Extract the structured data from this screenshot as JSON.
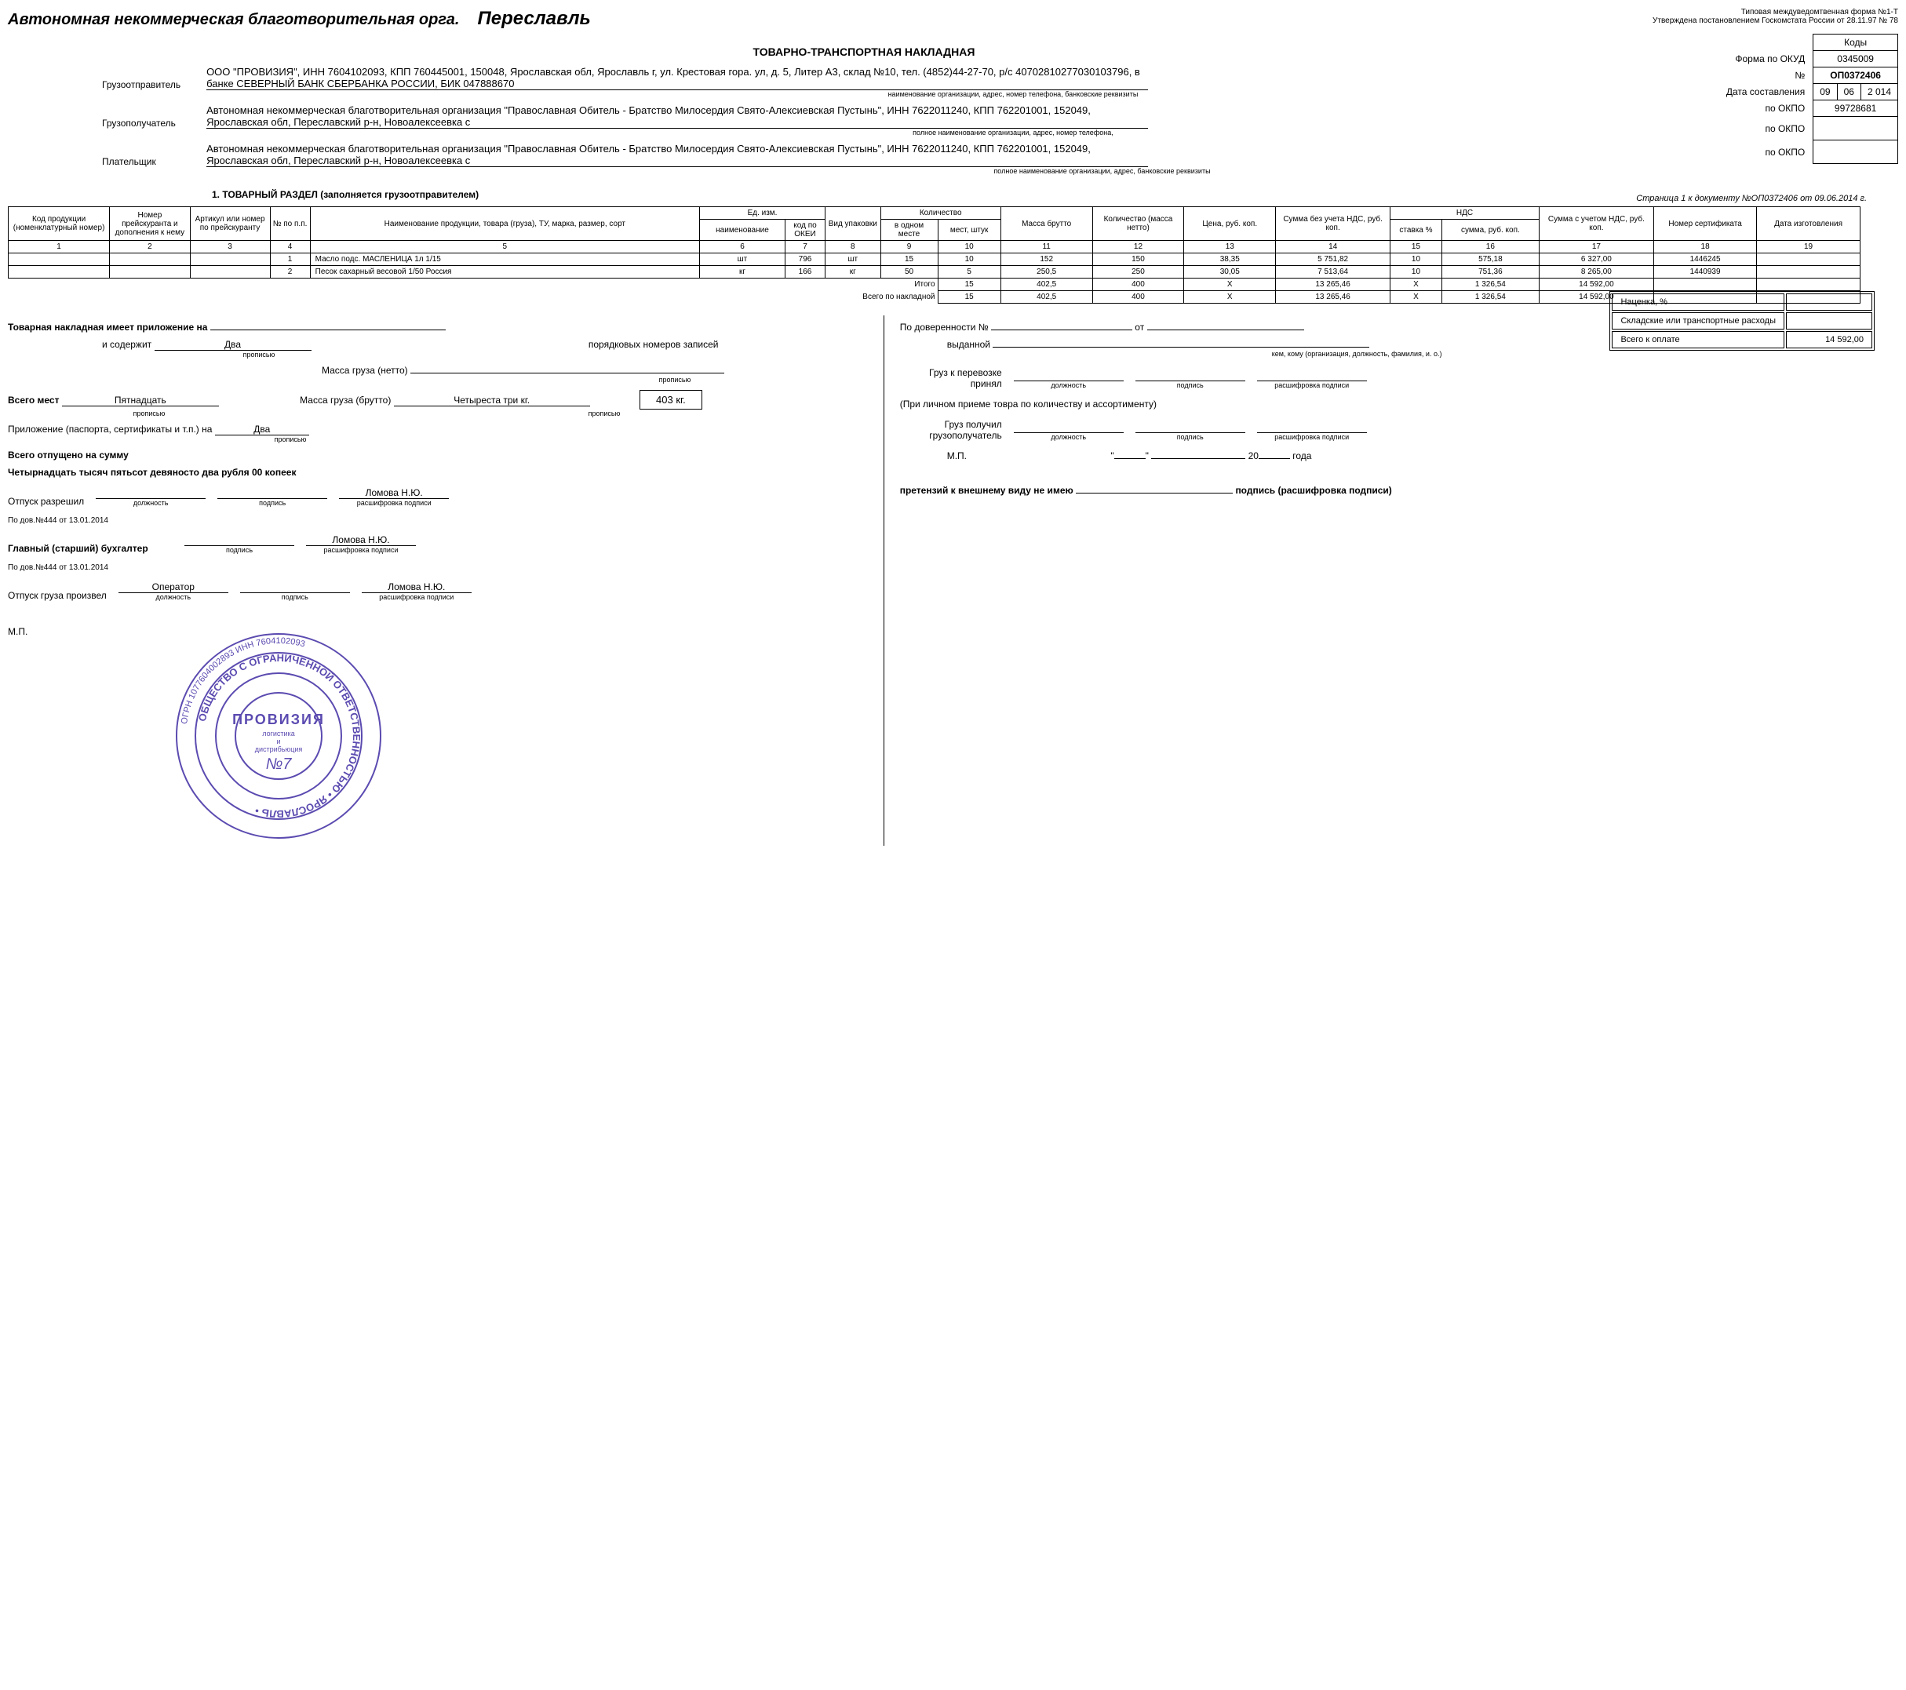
{
  "header": {
    "org_prefix": "Автономная некоммерческая благотворительная орга.",
    "city": "Переславль",
    "form_note1": "Типовая междуведомтвенная форма №1-Т",
    "form_note2": "Утверждена постановлением Госкомстата России от 28.11.97 № 78"
  },
  "codes": {
    "kody_label": "Коды",
    "okud_label": "Форма по ОКУД",
    "okud": "0345009",
    "no_label": "№",
    "doc_no": "ОП0372406",
    "date_label": "Дата составления",
    "date_d": "09",
    "date_m": "06",
    "date_y": "2 014",
    "okpo_label": "по ОКПО",
    "okpo1": "99728681",
    "okpo2": "",
    "okpo3": ""
  },
  "doc_title": "ТОВАРНО-ТРАНСПОРТНАЯ НАКЛАДНАЯ",
  "parties": {
    "sender_label": "Грузоотправитель",
    "sender": "ООО \"ПРОВИЗИЯ\", ИНН 7604102093, КПП 760445001, 150048, Ярославская обл, Ярославль г, ул. Крестовая гора. ул, д. 5, Литер А3, склад №10, тел. (4852)44-27-70, р/с 40702810277030103796, в банке СЕВЕРНЫЙ БАНК СБЕРБАНКА РОССИИ, БИК 047888670",
    "sender_sub": "наименование организации, адрес, номер телефона, банковские реквизиты",
    "receiver_label": "Грузополучатель",
    "receiver": "Автономная некоммерческая благотворительная организация \"Православная Обитель - Братство Милосердия Свято-Алексиевская Пустынь\", ИНН 7622011240, КПП 762201001, 152049, Ярославская обл, Переславский р-н, Новоалексеевка с",
    "receiver_sub": "полное наименование организации, адрес, номер телефона,",
    "payer_label": "Плательщик",
    "payer": "Автономная некоммерческая благотворительная организация \"Православная Обитель - Братство Милосердия Свято-Алексиевская Пустынь\", ИНН 7622011240, КПП 762201001, 152049, Ярославская обл, Переславский р-н, Новоалексеевка с",
    "payer_sub": "полное наименование организации, адрес, банковские реквизиты"
  },
  "section1_title": "1. ТОВАРНЫЙ РАЗДЕЛ (заполняется грузоотправителем)",
  "page_ref": "Страница 1 к документу №ОП0372406 от 09.06.2014 г.",
  "goods": {
    "headers": {
      "c1": "Код продукции (номенклатурный номер)",
      "c2": "Номер прейскуранта и дополнения к нему",
      "c3": "Артикул или номер по прейскуранту",
      "c4": "№ по п.п.",
      "c5": "Наименование продукции, товара (груза), ТУ, марка, размер, сорт",
      "ed_izm": "Ед. изм.",
      "c6": "наименование",
      "c7": "код по ОКЕИ",
      "c8": "Вид упаковки",
      "kol": "Количество",
      "c9": "в одном месте",
      "c10": "мест, штук",
      "c11": "Масса брутто",
      "c12": "Количество (масса нетто)",
      "c13": "Цена, руб. коп.",
      "c14": "Сумма без учета НДС, руб. коп.",
      "nds": "НДС",
      "c15": "ставка %",
      "c16": "сумма, руб. коп.",
      "c17": "Сумма с учетом НДС, руб. коп.",
      "c18": "Номер сертификата",
      "c19": "Дата изготовления"
    },
    "numrow": {
      "n1": "1",
      "n2": "2",
      "n3": "3",
      "n4": "4",
      "n5": "5",
      "n6": "6",
      "n7": "7",
      "n8": "8",
      "n9": "9",
      "n10": "10",
      "n11": "11",
      "n12": "12",
      "n13": "13",
      "n14": "14",
      "n15": "15",
      "n16": "16",
      "n17": "17",
      "n18": "18",
      "n19": "19"
    },
    "rows": [
      {
        "pp": "1",
        "name": "Масло подс. МАСЛЕНИЦА 1л  1/15",
        "u": "шт",
        "okei": "796",
        "pack": "шт",
        "per": "15",
        "places": "10",
        "brutto": "152",
        "netto": "150",
        "price": "38,35",
        "sum_no_nds": "5 751,82",
        "rate": "10",
        "nds_sum": "575,18",
        "sum_nds": "6 327,00",
        "cert": "1446245",
        "date": ""
      },
      {
        "pp": "2",
        "name": "Песок сахарный весовой 1/50 Россия",
        "u": "кг",
        "okei": "166",
        "pack": "кг",
        "per": "50",
        "places": "5",
        "brutto": "250,5",
        "netto": "250",
        "price": "30,05",
        "sum_no_nds": "7 513,64",
        "rate": "10",
        "nds_sum": "751,36",
        "sum_nds": "8 265,00",
        "cert": "1440939",
        "date": ""
      }
    ],
    "itogo_label": "Итого",
    "vsego_label": "Всего по накладной",
    "itogo": {
      "places": "15",
      "brutto": "402,5",
      "netto": "400",
      "price": "Х",
      "sum_no_nds": "13 265,46",
      "rate": "Х",
      "nds_sum": "1 326,54",
      "sum_nds": "14 592,00"
    },
    "vsego": {
      "places": "15",
      "brutto": "402,5",
      "netto": "400",
      "price": "Х",
      "sum_no_nds": "13 265,46",
      "rate": "Х",
      "nds_sum": "1 326,54",
      "sum_nds": "14 592,00"
    }
  },
  "bottom": {
    "attach_label": "Товарная накладная имеет приложение на",
    "contains_label": "и содержит",
    "contains": "Два",
    "records_suffix": "порядковых номеров записей",
    "propisyu": "прописью",
    "mass_netto_label": "Масса груза (нетто)",
    "mass_brutto_label": "Масса груза (брутто)",
    "mass_brutto_text": "Четыреста три  кг.",
    "mass_box": "403 кг.",
    "vsego_mest_label": "Всего мест",
    "vsego_mest": "Пятнадцать",
    "app_label": "Приложение (паспорта, сертификаты и т.п.) на",
    "app_val": "Два",
    "sum_label": "Всего отпущено на сумму",
    "sum_words": "Четырнадцать тысяч пятьсот девяносто два рубля 00 копеек",
    "release_allowed": "Отпуск разрешил",
    "dov_ref": "По дов.№444 от 13.01.2014",
    "chief_acc": "Главный (старший) бухгалтер",
    "release_done": "Отпуск груза произвел",
    "operator": "Оператор",
    "lomova": "Ломова Н.Ю.",
    "dolzhnost": "должность",
    "podpis": "подпись",
    "rasshifrovka": "расшифровка подписи",
    "mp": "М.П.",
    "nacenka": "Наценка, %",
    "sklad": "Складские или транспортные расходы",
    "vsego_oplate": "Всего к оплате",
    "vsego_oplate_val": "14 592,00",
    "doverennost": "По доверенности №",
    "ot": "от",
    "vydannoy": "выданной",
    "kem": "кем, кому (организация, должность, фамилия, и. о.)",
    "gruz_prinyal1": "Груз к перевозке",
    "gruz_prinyal2": "принял",
    "lichno": "(При личном приеме товра по количеству и ассортименту)",
    "gruz_poluchil1": "Груз получил",
    "gruz_poluchil2": "грузополучатель",
    "god": "года",
    "claims": "претензий к внешнему виду не имею",
    "podpis_rassh": "подпись (расшифровка подписи)",
    "twenty": "20"
  },
  "stamp": {
    "outer_text": "ОБЩЕСТВО С ОГРАНИЧЕННОЙ ОТВЕТСТВЕННОСТЬЮ • ЯРОСЛАВЛЬ •",
    "ogrn": "ОГРН 1077604002893 ИНН 7604102093",
    "brand": "ПРОВИЗИЯ",
    "sub1": "логистика",
    "sub2": "и",
    "sub3": "дистрибьюция",
    "no": "№7",
    "color": "#5b4bb0"
  }
}
